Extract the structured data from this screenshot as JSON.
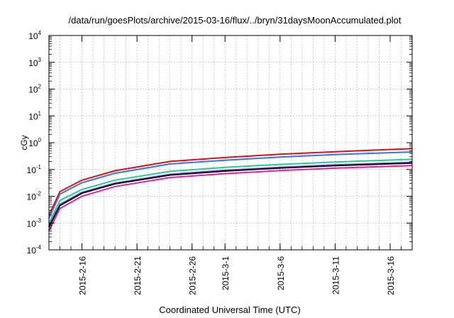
{
  "chart_data": {
    "type": "line",
    "title": "/data/run/goesPlots/archive/2015-03-16/flux/../bryn/31daysMoonAccumulated.plot",
    "ylabel": "cGy",
    "xlabel": "Coordinated Universal Time (UTC)",
    "yscale": "log",
    "ylim": [
      0.0001,
      10000
    ],
    "ytick_labels": [
      {
        "base": "10",
        "exp": "-4",
        "value": 0.0001
      },
      {
        "base": "10",
        "exp": "-3",
        "value": 0.001
      },
      {
        "base": "10",
        "exp": "-2",
        "value": 0.01
      },
      {
        "base": "10",
        "exp": "-1",
        "value": 0.1
      },
      {
        "base": "10",
        "exp": "0",
        "value": 1
      },
      {
        "base": "10",
        "exp": "1",
        "value": 10
      },
      {
        "base": "10",
        "exp": "2",
        "value": 100
      },
      {
        "base": "10",
        "exp": "3",
        "value": 1000
      },
      {
        "base": "10",
        "exp": "4",
        "value": 10000
      }
    ],
    "xlim": [
      "2015-02-13",
      "2015-03-18"
    ],
    "xticks": [
      "2015-2-16",
      "2015-2-21",
      "2015-2-26",
      "2015-3-1",
      "2015-3-6",
      "2015-3-11",
      "2015-3-16"
    ],
    "grid": true,
    "legend": "none",
    "series": [
      {
        "color": "#dd1111",
        "x": [
          "2015-02-13",
          "2015-02-14",
          "2015-02-16",
          "2015-02-19",
          "2015-02-24",
          "2015-03-01",
          "2015-03-06",
          "2015-03-11",
          "2015-03-18"
        ],
        "values": [
          0.002,
          0.015,
          0.04,
          0.09,
          0.2,
          0.28,
          0.37,
          0.46,
          0.6
        ]
      },
      {
        "color": "#3377ee",
        "x": [
          "2015-02-13",
          "2015-02-14",
          "2015-02-16",
          "2015-02-19",
          "2015-02-24",
          "2015-03-01",
          "2015-03-06",
          "2015-03-11",
          "2015-03-18"
        ],
        "values": [
          0.0015,
          0.012,
          0.032,
          0.072,
          0.16,
          0.22,
          0.29,
          0.36,
          0.45
        ]
      },
      {
        "color": "#22cc99",
        "x": [
          "2015-02-13",
          "2015-02-14",
          "2015-02-16",
          "2015-02-19",
          "2015-02-24",
          "2015-03-01",
          "2015-03-06",
          "2015-03-11",
          "2015-03-18"
        ],
        "values": [
          0.001,
          0.007,
          0.018,
          0.04,
          0.085,
          0.12,
          0.155,
          0.19,
          0.24
        ]
      },
      {
        "color": "#8844cc",
        "x": [
          "2015-02-13",
          "2015-02-14",
          "2015-02-16",
          "2015-02-19",
          "2015-02-24",
          "2015-03-01",
          "2015-03-06",
          "2015-03-11",
          "2015-03-18"
        ],
        "values": [
          0.0008,
          0.005,
          0.014,
          0.031,
          0.066,
          0.093,
          0.12,
          0.148,
          0.185
        ]
      },
      {
        "color": "#111111",
        "x": [
          "2015-02-13",
          "2015-02-14",
          "2015-02-16",
          "2015-02-19",
          "2015-02-24",
          "2015-03-01",
          "2015-03-06",
          "2015-03-11",
          "2015-03-18"
        ],
        "values": [
          0.0007,
          0.0045,
          0.013,
          0.029,
          0.062,
          0.087,
          0.113,
          0.139,
          0.174
        ]
      },
      {
        "color": "#dd22aa",
        "x": [
          "2015-02-13",
          "2015-02-14",
          "2015-02-16",
          "2015-02-19",
          "2015-02-24",
          "2015-03-01",
          "2015-03-06",
          "2015-03-11",
          "2015-03-18"
        ],
        "values": [
          0.0005,
          0.0035,
          0.01,
          0.023,
          0.05,
          0.07,
          0.091,
          0.112,
          0.14
        ]
      }
    ]
  }
}
